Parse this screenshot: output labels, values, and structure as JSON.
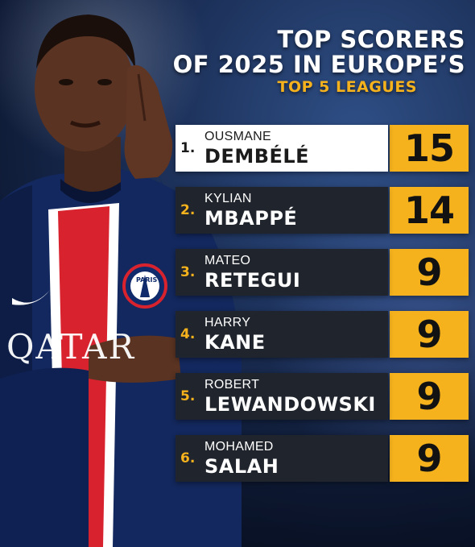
{
  "title": {
    "line1": "TOP SCORERS",
    "line2": "OF 2025 IN EUROPE’S",
    "subtitle": "TOP 5 LEAGUES"
  },
  "player_image": {
    "shirt_sponsor": "QATAR",
    "badge_text": "PARIS"
  },
  "scorers": [
    {
      "rank": "1.",
      "first_name": "OUSMANE",
      "last_name": "DEMBÉLÉ",
      "goals": "15"
    },
    {
      "rank": "2.",
      "first_name": "KYLIAN",
      "last_name": "MBAPPÉ",
      "goals": "14"
    },
    {
      "rank": "3.",
      "first_name": "MATEO",
      "last_name": "RETEGUI",
      "goals": "9"
    },
    {
      "rank": "4.",
      "first_name": "HARRY",
      "last_name": "KANE",
      "goals": "9"
    },
    {
      "rank": "5.",
      "first_name": "ROBERT",
      "last_name": "LEWANDOWSKI",
      "goals": "9"
    },
    {
      "rank": "6.",
      "first_name": "MOHAMED",
      "last_name": "SALAH",
      "goals": "9"
    }
  ],
  "colors": {
    "accent": "#f5b21d",
    "row_dark": "#20242c",
    "row_highlight": "#ffffff",
    "background": "#1b2f57"
  }
}
